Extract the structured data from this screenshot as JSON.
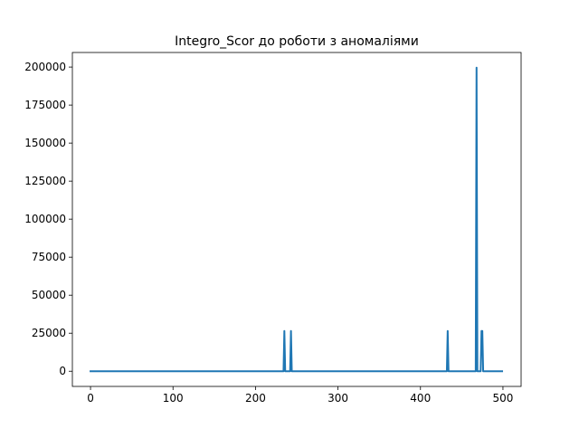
{
  "chart_data": {
    "type": "line",
    "title": "Integro_Scor до роботи з аномаліями",
    "xlabel": "",
    "ylabel": "",
    "xlim": [
      -22,
      522
    ],
    "ylim": [
      -9980,
      209580
    ],
    "x_ticks": [
      0,
      100,
      200,
      300,
      400,
      500
    ],
    "x_tick_labels": [
      "0",
      "100",
      "200",
      "300",
      "400",
      "500"
    ],
    "y_ticks": [
      0,
      25000,
      50000,
      75000,
      100000,
      125000,
      150000,
      175000,
      200000
    ],
    "y_tick_labels": [
      "0",
      "25000",
      "50000",
      "75000",
      "100000",
      "125000",
      "150000",
      "175000",
      "200000"
    ],
    "grid": false,
    "series": [
      {
        "color": "#1f77b4",
        "x": [
          0,
          234,
          235,
          236,
          242,
          243,
          244,
          432,
          433,
          434,
          467,
          468,
          469,
          473,
          474,
          475,
          476,
          499
        ],
        "y": [
          0,
          0,
          26500,
          0,
          0,
          26500,
          0,
          0,
          26500,
          0,
          0,
          199600,
          0,
          0,
          26500,
          26500,
          0,
          0
        ]
      }
    ]
  }
}
